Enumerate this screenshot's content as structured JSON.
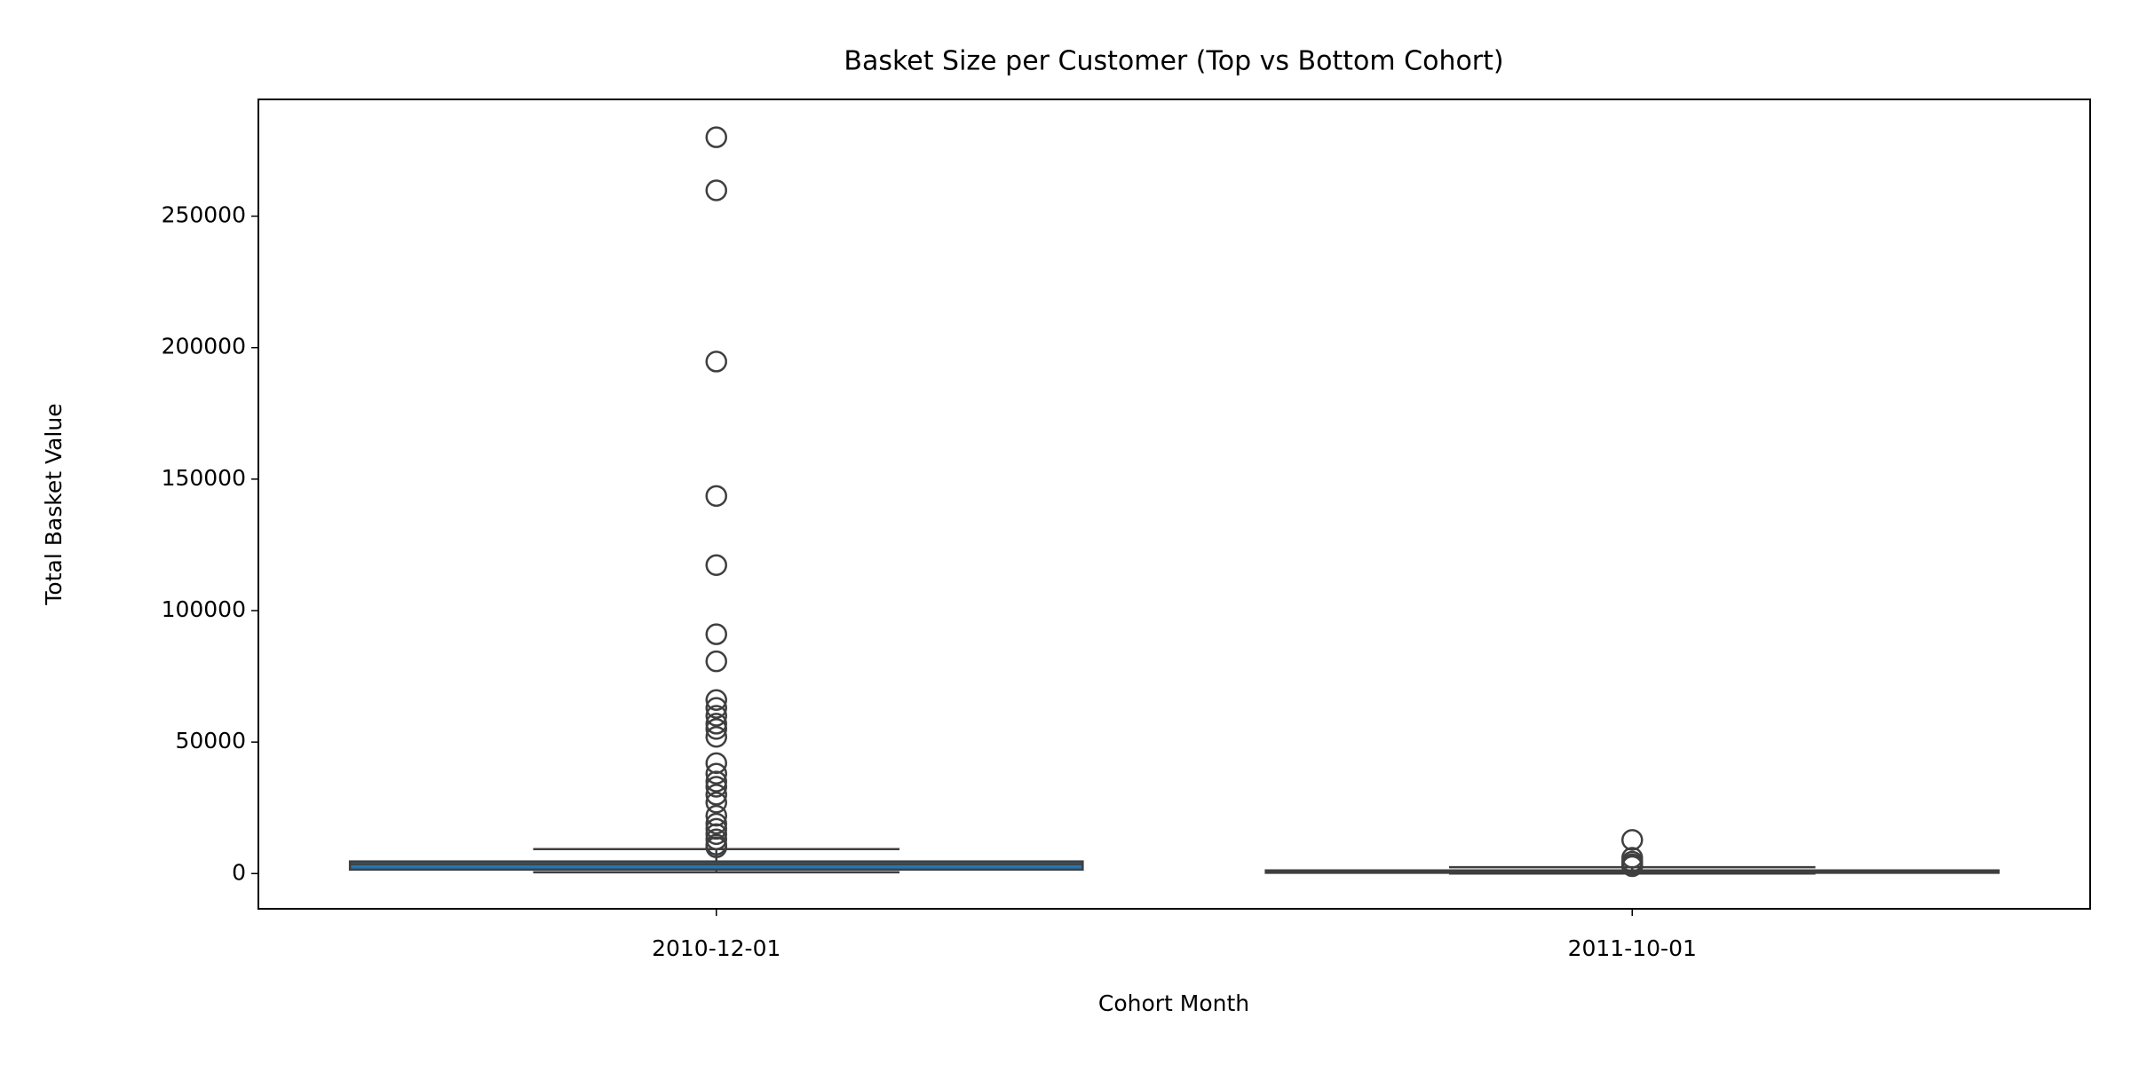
{
  "chart_data": {
    "type": "box",
    "title": "Basket Size per Customer (Top vs Bottom Cohort)",
    "x_label": "Cohort Month",
    "y_label": "Total Basket Value",
    "categories": [
      "2010-12-01",
      "2011-10-01"
    ],
    "boxes": [
      {
        "whislo": 500,
        "q1": 1500,
        "med": 3600,
        "q3": 4600,
        "whishi": 9300,
        "fliers": [
          280000,
          259800,
          194700,
          143600,
          117300,
          91000,
          80700,
          66000,
          63000,
          60000,
          57000,
          55000,
          52000,
          42000,
          38000,
          35000,
          33000,
          30000,
          27000,
          22000,
          19000,
          17000,
          15000,
          13000,
          11000,
          10000
        ]
      },
      {
        "whislo": 0,
        "q1": 300,
        "med": 600,
        "q3": 1200,
        "whishi": 2400,
        "fliers": [
          12800,
          6000,
          4500,
          3500,
          2800
        ]
      }
    ],
    "color": "#1f77b4",
    "edge_color": "#3f3f3f",
    "ylim": [
      -13400,
      294400
    ],
    "yticks": [
      0,
      50000,
      100000,
      150000,
      200000,
      250000
    ],
    "grid": false
  }
}
